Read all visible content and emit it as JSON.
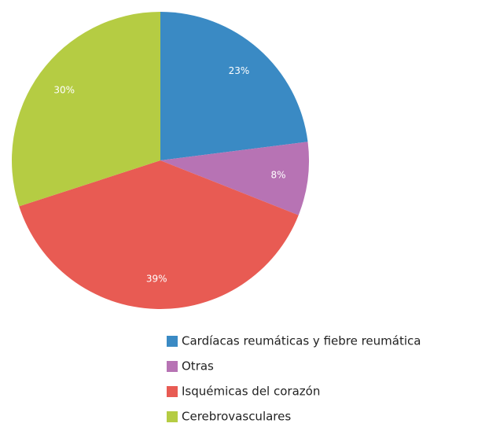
{
  "chart_data": {
    "type": "pie",
    "categories": [
      "Cardíacas reumáticas y fiebre reumática",
      "Otras",
      "Isquémicas del corazón",
      "Cerebrovasculares"
    ],
    "values": [
      23,
      8,
      39,
      30
    ],
    "value_labels": [
      "23%",
      "8%",
      "39%",
      "30%"
    ],
    "colors": [
      "#3a8ac4",
      "#b773b4",
      "#e85b53",
      "#b5cc43"
    ],
    "legend": "bottom-right"
  }
}
